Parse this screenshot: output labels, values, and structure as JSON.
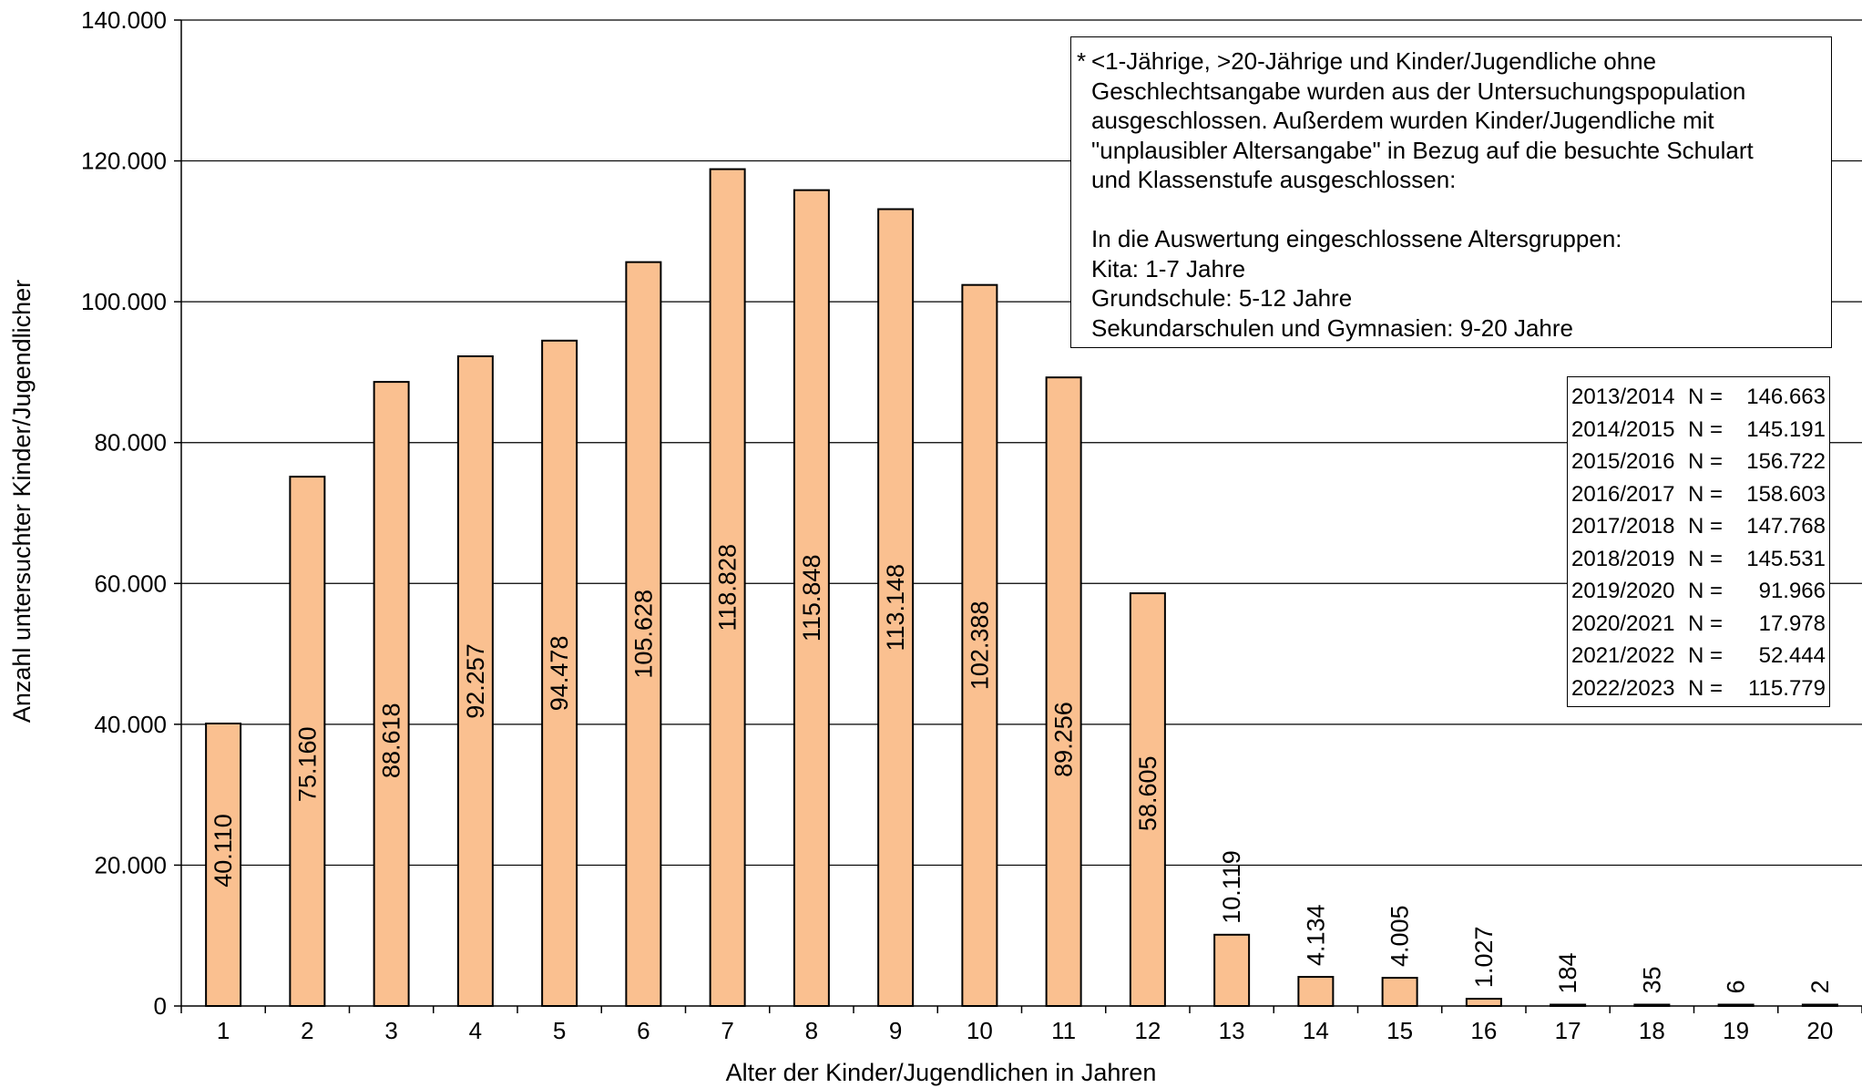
{
  "chart_data": {
    "type": "bar",
    "categories": [
      "1",
      "2",
      "3",
      "4",
      "5",
      "6",
      "7",
      "8",
      "9",
      "10",
      "11",
      "12",
      "13",
      "14",
      "15",
      "16",
      "17",
      "18",
      "19",
      "20"
    ],
    "values": [
      40110,
      75160,
      88618,
      92257,
      94478,
      105628,
      118828,
      115848,
      113148,
      102388,
      89256,
      58605,
      10119,
      4134,
      4005,
      1027,
      184,
      35,
      6,
      2
    ],
    "data_labels": [
      "40.110",
      "75.160",
      "88.618",
      "92.257",
      "94.478",
      "105.628",
      "118.828",
      "115.848",
      "113.148",
      "102.388",
      "89.256",
      "58.605",
      "10.119",
      "4.134",
      "4.005",
      "1.027",
      "184",
      "35",
      "6",
      "2"
    ],
    "yticks": [
      0,
      20000,
      40000,
      60000,
      80000,
      100000,
      120000,
      140000
    ],
    "ytick_labels": [
      "0",
      "20.000",
      "40.000",
      "60.000",
      "80.000",
      "100.000",
      "120.000",
      "140.000"
    ],
    "ylim": [
      0,
      140000
    ],
    "xlabel": "Alter der Kinder/Jugendlichen in Jahren",
    "ylabel": "Anzahl untersuchter Kinder/Jugendlicher",
    "grid": true,
    "bar_color": "#FAC090",
    "bar_edge_color": "#000000"
  },
  "note": {
    "star": "*",
    "lines": [
      "<1-Jährige, >20-Jährige und Kinder/Jugendliche ohne",
      "Geschlechtsangabe wurden aus der Untersuchungspopulation",
      "ausgeschlossen. Außerdem wurden Kinder/Jugendliche mit",
      "\"unplausibler Altersangabe\" in Bezug auf die besuchte Schulart",
      "und Klassenstufe ausgeschlossen:"
    ],
    "lines2": [
      "In die Auswertung eingeschlossene Altersgruppen:",
      "Kita: 1-7 Jahre",
      "Grundschule: 5-12 Jahre",
      "Sekundarschulen und Gymnasien: 9-20 Jahre"
    ]
  },
  "n_table": [
    {
      "year": "2013/2014",
      "eq": "N =",
      "val": "146.663"
    },
    {
      "year": "2014/2015",
      "eq": "N =",
      "val": "145.191"
    },
    {
      "year": "2015/2016",
      "eq": "N =",
      "val": "156.722"
    },
    {
      "year": "2016/2017",
      "eq": "N =",
      "val": "158.603"
    },
    {
      "year": "2017/2018",
      "eq": "N =",
      "val": "147.768"
    },
    {
      "year": "2018/2019",
      "eq": "N =",
      "val": "145.531"
    },
    {
      "year": "2019/2020",
      "eq": "N =",
      "val": "91.966"
    },
    {
      "year": "2020/2021",
      "eq": "N =",
      "val": "17.978"
    },
    {
      "year": "2021/2022",
      "eq": "N =",
      "val": "52.444"
    },
    {
      "year": "2022/2023",
      "eq": "N =",
      "val": "115.779"
    }
  ]
}
